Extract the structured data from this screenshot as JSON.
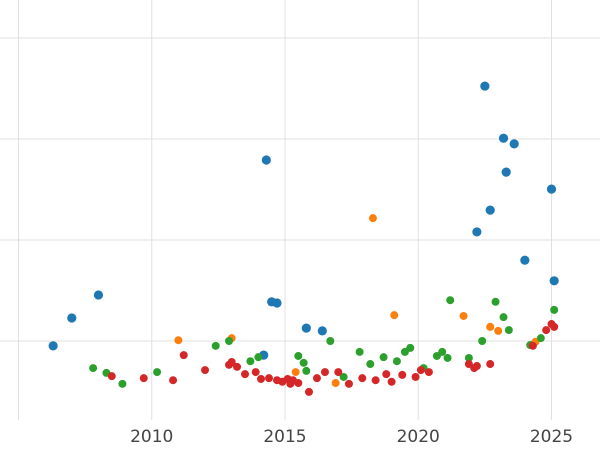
{
  "chart_data": {
    "type": "scatter",
    "title": "",
    "xlabel": "",
    "ylabel": "",
    "xlim": [
      2004.3,
      2026.8
    ],
    "ylim": [
      0,
      105
    ],
    "x_ticks": [
      {
        "value": 2010,
        "label": "2010"
      },
      {
        "value": 2015,
        "label": "2015"
      },
      {
        "value": 2020,
        "label": "2020"
      },
      {
        "value": 2025,
        "label": "2025"
      }
    ],
    "y_ticks_visible": false,
    "legend_position": "none",
    "grid": {
      "visible": true,
      "color": "#e0e0e0",
      "x_values": [
        2005,
        2010,
        2015,
        2020,
        2025
      ],
      "y_values": [
        25,
        50,
        75,
        100
      ]
    },
    "background_color": "#ffffff",
    "series": [
      {
        "name": "blue",
        "color": "#1f77b4",
        "marker_radius": 4.6,
        "points": [
          [
            2006.3,
            23.8
          ],
          [
            2007.0,
            30.7
          ],
          [
            2008.0,
            36.4
          ],
          [
            2014.2,
            21.5
          ],
          [
            2014.3,
            69.8
          ],
          [
            2014.5,
            34.7
          ],
          [
            2014.7,
            34.4
          ],
          [
            2015.8,
            28.2
          ],
          [
            2016.4,
            27.5
          ],
          [
            2022.2,
            52.0
          ],
          [
            2022.5,
            88.1
          ],
          [
            2022.7,
            57.4
          ],
          [
            2023.2,
            75.2
          ],
          [
            2023.3,
            66.8
          ],
          [
            2023.6,
            73.8
          ],
          [
            2024.0,
            45.0
          ],
          [
            2025.0,
            62.6
          ],
          [
            2025.1,
            39.9
          ]
        ]
      },
      {
        "name": "orange",
        "color": "#ff7f0e",
        "marker_radius": 4.0,
        "points": [
          [
            2011.0,
            25.2
          ],
          [
            2013.0,
            25.7
          ],
          [
            2015.4,
            17.3
          ],
          [
            2016.9,
            14.6
          ],
          [
            2018.3,
            55.4
          ],
          [
            2019.1,
            31.4
          ],
          [
            2021.7,
            31.2
          ],
          [
            2022.7,
            28.5
          ],
          [
            2023.0,
            27.5
          ],
          [
            2024.4,
            24.8
          ]
        ]
      },
      {
        "name": "green",
        "color": "#2ca02c",
        "marker_radius": 4.0,
        "points": [
          [
            2007.8,
            18.3
          ],
          [
            2008.3,
            17.1
          ],
          [
            2008.9,
            14.4
          ],
          [
            2010.2,
            17.3
          ],
          [
            2012.4,
            23.8
          ],
          [
            2012.9,
            25.0
          ],
          [
            2013.7,
            20.0
          ],
          [
            2014.0,
            21.0
          ],
          [
            2015.5,
            21.3
          ],
          [
            2015.7,
            19.6
          ],
          [
            2015.8,
            17.6
          ],
          [
            2016.7,
            25.0
          ],
          [
            2017.2,
            16.1
          ],
          [
            2017.8,
            22.3
          ],
          [
            2018.2,
            19.3
          ],
          [
            2018.7,
            21.0
          ],
          [
            2019.2,
            20.0
          ],
          [
            2019.5,
            22.3
          ],
          [
            2019.7,
            23.3
          ],
          [
            2020.2,
            18.3
          ],
          [
            2020.7,
            21.3
          ],
          [
            2020.9,
            22.3
          ],
          [
            2021.1,
            20.8
          ],
          [
            2021.2,
            35.1
          ],
          [
            2021.9,
            20.8
          ],
          [
            2022.4,
            25.0
          ],
          [
            2022.9,
            34.7
          ],
          [
            2023.2,
            30.9
          ],
          [
            2023.4,
            27.7
          ],
          [
            2024.2,
            24.0
          ],
          [
            2024.6,
            25.7
          ],
          [
            2025.1,
            32.7
          ]
        ]
      },
      {
        "name": "red",
        "color": "#d62728",
        "marker_radius": 4.0,
        "points": [
          [
            2008.5,
            16.3
          ],
          [
            2009.7,
            15.8
          ],
          [
            2010.8,
            15.3
          ],
          [
            2011.2,
            21.5
          ],
          [
            2012.0,
            17.8
          ],
          [
            2012.9,
            19.1
          ],
          [
            2013.0,
            19.8
          ],
          [
            2013.2,
            18.6
          ],
          [
            2013.5,
            16.8
          ],
          [
            2013.9,
            17.3
          ],
          [
            2014.1,
            15.6
          ],
          [
            2014.4,
            15.8
          ],
          [
            2014.7,
            15.3
          ],
          [
            2014.9,
            14.9
          ],
          [
            2015.1,
            15.6
          ],
          [
            2015.2,
            14.4
          ],
          [
            2015.3,
            15.3
          ],
          [
            2015.5,
            14.6
          ],
          [
            2015.9,
            12.4
          ],
          [
            2016.2,
            15.8
          ],
          [
            2016.5,
            17.3
          ],
          [
            2017.0,
            17.3
          ],
          [
            2017.4,
            14.4
          ],
          [
            2017.9,
            15.8
          ],
          [
            2018.4,
            15.3
          ],
          [
            2018.8,
            16.8
          ],
          [
            2019.0,
            14.9
          ],
          [
            2019.4,
            16.6
          ],
          [
            2019.9,
            16.1
          ],
          [
            2020.1,
            17.8
          ],
          [
            2020.4,
            17.3
          ],
          [
            2021.9,
            19.3
          ],
          [
            2022.1,
            18.3
          ],
          [
            2022.2,
            18.8
          ],
          [
            2022.7,
            19.3
          ],
          [
            2024.3,
            23.8
          ],
          [
            2024.8,
            27.7
          ],
          [
            2025.0,
            29.2
          ],
          [
            2025.1,
            28.5
          ]
        ]
      }
    ]
  }
}
